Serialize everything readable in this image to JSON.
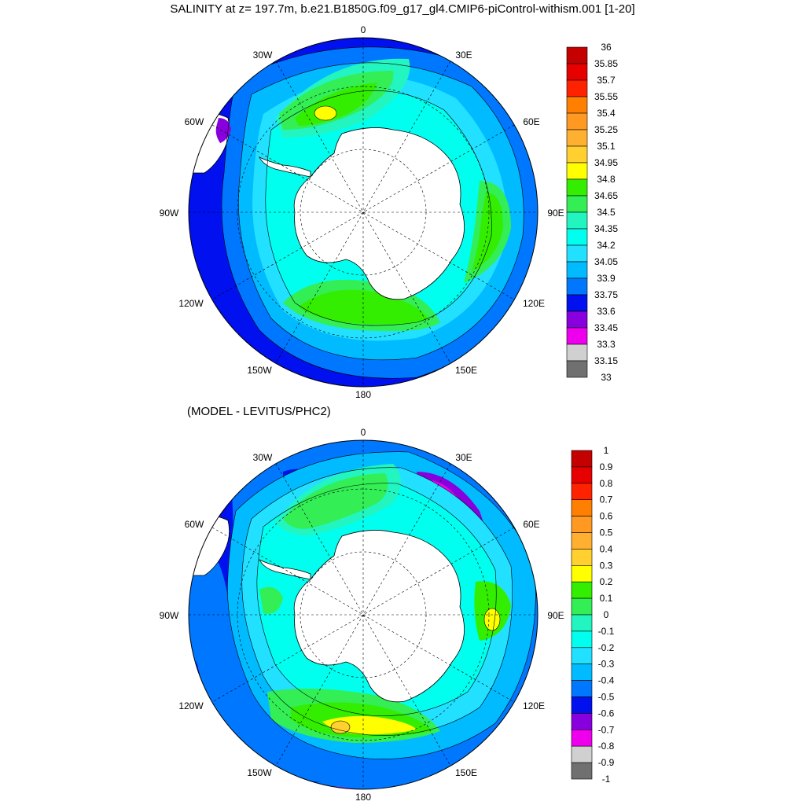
{
  "title": "SALINITY at z= 197.7m, b.e21.B1850G.f09_g17_gl4.CMIP6-piControl-withism.001 [1-20]",
  "subtitle": "(MODEL - LEVITUS/PHC2)",
  "longitude_labels": [
    "0",
    "30E",
    "60E",
    "90E",
    "120E",
    "150E",
    "180",
    "150W",
    "120W",
    "90W",
    "60W",
    "30W"
  ],
  "colorbar_top": {
    "labels": [
      "36",
      "35.85",
      "35.7",
      "35.55",
      "35.4",
      "35.25",
      "35.1",
      "34.95",
      "34.8",
      "34.65",
      "34.5",
      "34.35",
      "34.2",
      "34.05",
      "33.9",
      "33.75",
      "33.6",
      "33.45",
      "33.3",
      "33.15",
      "33"
    ],
    "colors": [
      "#c40000",
      "#e60000",
      "#ff2200",
      "#ff7f00",
      "#ff9922",
      "#ffb030",
      "#ffd030",
      "#ffff00",
      "#33ee00",
      "#33ee55",
      "#22f5c0",
      "#00ffee",
      "#22e0ff",
      "#00bbff",
      "#0077ff",
      "#0010ee",
      "#8800dd",
      "#ee00ee",
      "#d0d0d0",
      "#707070"
    ]
  },
  "colorbar_bottom": {
    "labels": [
      "1",
      "0.9",
      "0.8",
      "0.7",
      "0.6",
      "0.5",
      "0.4",
      "0.3",
      "0.2",
      "0.1",
      "0",
      "-0.1",
      "-0.2",
      "-0.3",
      "-0.4",
      "-0.5",
      "-0.6",
      "-0.7",
      "-0.8",
      "-0.9",
      "-1"
    ],
    "colors": [
      "#c40000",
      "#e60000",
      "#ff2200",
      "#ff7f00",
      "#ff9922",
      "#ffb030",
      "#ffd030",
      "#ffff00",
      "#33ee00",
      "#33ee55",
      "#22f5c0",
      "#00ffee",
      "#22e0ff",
      "#00bbff",
      "#0077ff",
      "#0010ee",
      "#8800dd",
      "#ee00ee",
      "#d0d0d0",
      "#707070"
    ]
  }
}
